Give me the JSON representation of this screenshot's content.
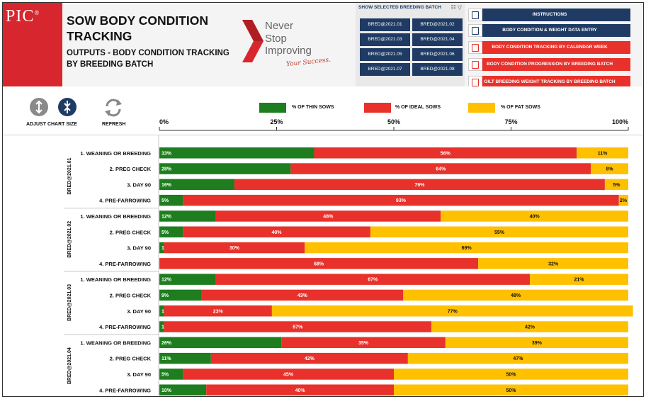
{
  "header": {
    "logo_text": "PIC",
    "logo_mark": "®",
    "title": "SOW BODY CONDITION TRACKING",
    "subtitle": "OUTPUTS - BODY CONDITION TRACKING BY BREEDING BATCH",
    "slogan_lines": [
      "Never",
      "Stop",
      "Improving"
    ],
    "slogan_script": "Your Success."
  },
  "batch_selector": {
    "title": "SHOW SELECTED BREEDING BATCH",
    "buttons": [
      "BRED@2021.01",
      "BRED@2021.02",
      "BRED@2021.03",
      "BRED@2021.04",
      "BRED@2021.05",
      "BRED@2021.06",
      "BRED@2021.07",
      "BRED@2021.08"
    ]
  },
  "nav": {
    "buttons": [
      {
        "label": "INSTRUCTIONS",
        "color": "#1f3b63",
        "icon": "instructions-icon"
      },
      {
        "label": "BODY CONDITION & WEIGHT DATA ENTRY",
        "color": "#1f3b63",
        "icon": "data-entry-icon"
      },
      {
        "label": "BODY CONDITION TRACKING BY CALENDAR WEEK",
        "color": "#e8312a",
        "icon": "calendar-icon"
      },
      {
        "label": "BODY CONDITION PROGRESSION BY BREEDING BATCH",
        "color": "#e8312a",
        "icon": "progression-icon"
      },
      {
        "label": "GILT BREEDING WEIGHT TRACKING BY BREEDING BATCH",
        "color": "#e8312a",
        "icon": "truck-icon"
      }
    ]
  },
  "controls": {
    "adjust_label": "ADJUST CHART SIZE",
    "refresh_label": "REFRESH"
  },
  "colors": {
    "thin": "#1e7d1e",
    "ideal": "#e8312a",
    "fat": "#ffc000"
  },
  "chart_data": {
    "type": "bar",
    "orientation": "horizontal",
    "stacked": true,
    "legend": [
      "% OF THIN SOWS",
      "% OF IDEAL SOWS",
      "% OF FAT SOWS"
    ],
    "legend_position": "top",
    "x_ticks": [
      "0%",
      "25%",
      "50%",
      "75%",
      "100%"
    ],
    "xlim": [
      0,
      100
    ],
    "groups": [
      {
        "batch": "BRED@2021.01",
        "rows": [
          {
            "stage": "1. WEANING OR BREEDING",
            "thin": 33,
            "ideal": 56,
            "fat": 11
          },
          {
            "stage": "2. PREG CHECK",
            "thin": 28,
            "ideal": 64,
            "fat": 8
          },
          {
            "stage": "3. DAY 90",
            "thin": 16,
            "ideal": 79,
            "fat": 5
          },
          {
            "stage": "4. PRE-FARROWING",
            "thin": 5,
            "ideal": 93,
            "fat": 2
          }
        ]
      },
      {
        "batch": "BRED@2021.02",
        "rows": [
          {
            "stage": "1. WEANING OR BREEDING",
            "thin": 12,
            "ideal": 48,
            "fat": 40
          },
          {
            "stage": "2. PREG CHECK",
            "thin": 5,
            "ideal": 40,
            "fat": 55
          },
          {
            "stage": "3. DAY 90",
            "thin": 1,
            "ideal": 30,
            "fat": 69
          },
          {
            "stage": "4. PRE-FARROWING",
            "thin": 0,
            "ideal": 68,
            "fat": 32
          }
        ]
      },
      {
        "batch": "BRED@2021.03",
        "rows": [
          {
            "stage": "1. WEANING OR BREEDING",
            "thin": 12,
            "ideal": 67,
            "fat": 21
          },
          {
            "stage": "2. PREG CHECK",
            "thin": 9,
            "ideal": 43,
            "fat": 48
          },
          {
            "stage": "3. DAY 90",
            "thin": 1,
            "ideal": 23,
            "fat": 77
          },
          {
            "stage": "4. PRE-FARROWING",
            "thin": 1,
            "ideal": 57,
            "fat": 42
          }
        ]
      },
      {
        "batch": "BRED@2021.04",
        "rows": [
          {
            "stage": "1. WEANING OR BREEDING",
            "thin": 26,
            "ideal": 35,
            "fat": 39
          },
          {
            "stage": "2. PREG CHECK",
            "thin": 11,
            "ideal": 42,
            "fat": 47
          },
          {
            "stage": "3. DAY 90",
            "thin": 5,
            "ideal": 45,
            "fat": 50
          },
          {
            "stage": "4. PRE-FARROWING",
            "thin": 10,
            "ideal": 40,
            "fat": 50
          }
        ]
      }
    ]
  }
}
